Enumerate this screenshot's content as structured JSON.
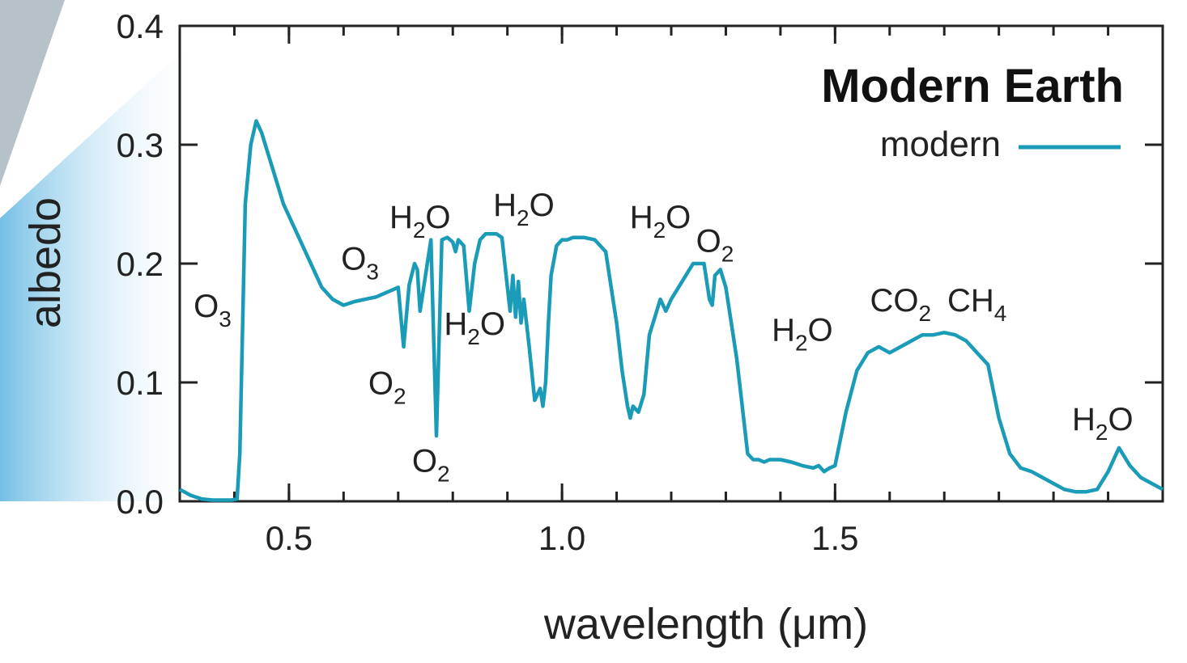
{
  "chart_data": {
    "type": "line",
    "title": "Modern Earth",
    "xlabel": "wavelength (μm)",
    "ylabel": "albedo",
    "xlim": [
      0.3,
      2.1
    ],
    "ylim": [
      0.0,
      0.4
    ],
    "xticks": [
      0.5,
      1.0,
      1.5
    ],
    "xtick_labels": [
      "0.5",
      "1.0",
      "1.5"
    ],
    "yticks": [
      0.0,
      0.1,
      0.2,
      0.3,
      0.4
    ],
    "ytick_labels": [
      "0.0",
      "0.1",
      "0.2",
      "0.3",
      "0.4"
    ],
    "legend": {
      "position": "top-right"
    },
    "series": [
      {
        "name": "modern",
        "color": "#1a9bb8",
        "x": [
          0.3,
          0.32,
          0.34,
          0.36,
          0.38,
          0.395,
          0.405,
          0.41,
          0.42,
          0.43,
          0.44,
          0.45,
          0.46,
          0.47,
          0.48,
          0.49,
          0.5,
          0.52,
          0.54,
          0.56,
          0.58,
          0.6,
          0.62,
          0.64,
          0.66,
          0.68,
          0.7,
          0.71,
          0.72,
          0.73,
          0.735,
          0.74,
          0.75,
          0.76,
          0.77,
          0.78,
          0.79,
          0.8,
          0.805,
          0.81,
          0.82,
          0.83,
          0.84,
          0.85,
          0.86,
          0.87,
          0.88,
          0.89,
          0.9,
          0.905,
          0.91,
          0.915,
          0.92,
          0.925,
          0.93,
          0.94,
          0.95,
          0.96,
          0.965,
          0.97,
          0.975,
          0.98,
          0.99,
          1.0,
          1.01,
          1.02,
          1.04,
          1.06,
          1.08,
          1.09,
          1.1,
          1.11,
          1.12,
          1.125,
          1.13,
          1.14,
          1.15,
          1.16,
          1.17,
          1.18,
          1.19,
          1.2,
          1.22,
          1.24,
          1.26,
          1.27,
          1.275,
          1.28,
          1.29,
          1.3,
          1.31,
          1.32,
          1.33,
          1.34,
          1.35,
          1.36,
          1.37,
          1.38,
          1.4,
          1.42,
          1.44,
          1.46,
          1.47,
          1.48,
          1.49,
          1.5,
          1.52,
          1.54,
          1.56,
          1.58,
          1.6,
          1.62,
          1.64,
          1.66,
          1.68,
          1.7,
          1.72,
          1.74,
          1.76,
          1.78,
          1.8,
          1.82,
          1.84,
          1.86,
          1.88,
          1.9,
          1.92,
          1.94,
          1.96,
          1.98,
          2.0,
          2.02,
          2.04,
          2.06,
          2.08,
          2.1
        ],
        "y": [
          0.01,
          0.005,
          0.002,
          0.001,
          0.001,
          0.001,
          0.002,
          0.04,
          0.25,
          0.3,
          0.32,
          0.31,
          0.295,
          0.28,
          0.265,
          0.25,
          0.24,
          0.22,
          0.2,
          0.18,
          0.17,
          0.165,
          0.168,
          0.17,
          0.172,
          0.176,
          0.18,
          0.13,
          0.182,
          0.2,
          0.195,
          0.16,
          0.19,
          0.22,
          0.055,
          0.22,
          0.222,
          0.218,
          0.21,
          0.22,
          0.215,
          0.16,
          0.2,
          0.22,
          0.225,
          0.225,
          0.225,
          0.222,
          0.18,
          0.16,
          0.19,
          0.155,
          0.185,
          0.15,
          0.17,
          0.13,
          0.085,
          0.095,
          0.08,
          0.1,
          0.15,
          0.19,
          0.215,
          0.22,
          0.22,
          0.222,
          0.222,
          0.22,
          0.21,
          0.18,
          0.15,
          0.11,
          0.08,
          0.07,
          0.08,
          0.075,
          0.09,
          0.14,
          0.155,
          0.17,
          0.16,
          0.17,
          0.185,
          0.2,
          0.2,
          0.17,
          0.165,
          0.19,
          0.195,
          0.18,
          0.15,
          0.12,
          0.08,
          0.04,
          0.035,
          0.035,
          0.033,
          0.035,
          0.035,
          0.033,
          0.03,
          0.028,
          0.03,
          0.025,
          0.028,
          0.03,
          0.075,
          0.11,
          0.125,
          0.13,
          0.125,
          0.13,
          0.135,
          0.14,
          0.14,
          0.142,
          0.14,
          0.135,
          0.125,
          0.115,
          0.07,
          0.04,
          0.028,
          0.025,
          0.02,
          0.015,
          0.01,
          0.008,
          0.008,
          0.01,
          0.025,
          0.045,
          0.03,
          0.02,
          0.015,
          0.01
        ]
      }
    ],
    "annotations": [
      {
        "species": "O",
        "sub": "3",
        "x": 0.36,
        "y": 0.155
      },
      {
        "species": "O",
        "sub": "3",
        "x": 0.63,
        "y": 0.195
      },
      {
        "species": "H",
        "sub": "2",
        "tail": "O",
        "x": 0.74,
        "y": 0.23
      },
      {
        "species": "O",
        "sub": "2",
        "x": 0.68,
        "y": 0.09
      },
      {
        "species": "O",
        "sub": "2",
        "x": 0.76,
        "y": 0.025
      },
      {
        "species": "H",
        "sub": "2",
        "tail": "O",
        "x": 0.84,
        "y": 0.14
      },
      {
        "species": "H",
        "sub": "2",
        "tail": "O",
        "x": 0.93,
        "y": 0.24
      },
      {
        "species": "H",
        "sub": "2",
        "tail": "O",
        "x": 1.18,
        "y": 0.23
      },
      {
        "species": "O",
        "sub": "2",
        "x": 1.28,
        "y": 0.21
      },
      {
        "species": "H",
        "sub": "2",
        "tail": "O",
        "x": 1.44,
        "y": 0.135
      },
      {
        "species": "CO",
        "sub": "2",
        "x": 1.62,
        "y": 0.16
      },
      {
        "species": "CH",
        "sub": "4",
        "x": 1.76,
        "y": 0.16
      },
      {
        "species": "H",
        "sub": "2",
        "tail": "O",
        "x": 1.99,
        "y": 0.06
      }
    ]
  }
}
